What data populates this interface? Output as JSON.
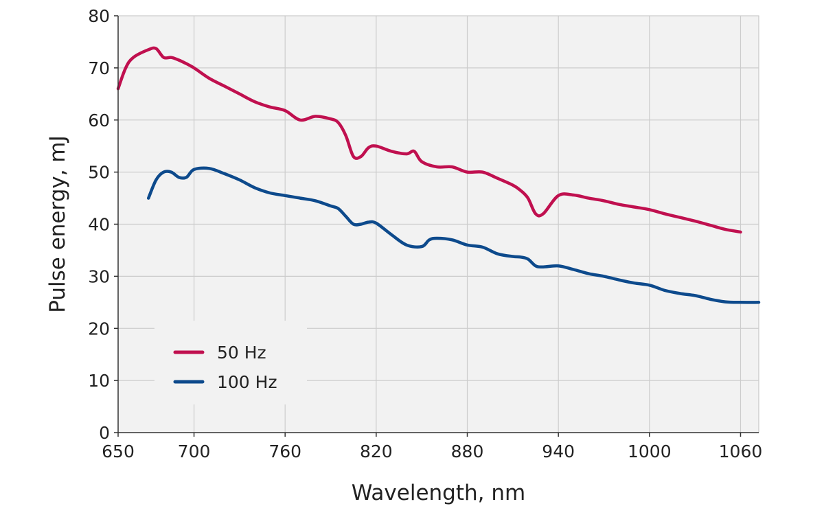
{
  "chart_data": {
    "type": "line",
    "xlabel": "Wavelength, nm",
    "ylabel": "Pulse energy, mJ",
    "xlim": [
      650,
      1072
    ],
    "ylim": [
      0,
      80
    ],
    "x_ticks": [
      650,
      700,
      760,
      820,
      880,
      940,
      1000,
      1060
    ],
    "x_tick_labels": [
      "650",
      "700",
      "760",
      "820",
      "880",
      "940",
      "1000",
      "1060"
    ],
    "y_ticks": [
      0,
      10,
      20,
      30,
      40,
      50,
      60,
      70,
      80
    ],
    "y_tick_labels": [
      "0",
      "10",
      "20",
      "30",
      "40",
      "50",
      "60",
      "70",
      "80"
    ],
    "grid": true,
    "legend_position": "bottom-left",
    "plot_background": "#f2f2f2",
    "grid_color": "#cccccc",
    "series": [
      {
        "name": "50 Hz",
        "color": "#c0104f",
        "x": [
          650,
          655,
          660,
          670,
          675,
          680,
          685,
          690,
          695,
          700,
          710,
          720,
          730,
          740,
          750,
          760,
          770,
          780,
          790,
          795,
          800,
          805,
          810,
          815,
          820,
          830,
          840,
          845,
          850,
          860,
          870,
          880,
          890,
          900,
          910,
          915,
          920,
          925,
          930,
          940,
          950,
          960,
          970,
          980,
          990,
          1000,
          1010,
          1020,
          1030,
          1040,
          1050,
          1060
        ],
        "y": [
          66,
          70,
          72,
          73.5,
          73.7,
          72,
          72,
          71.5,
          70.8,
          70,
          68,
          66.5,
          65,
          63.5,
          62.5,
          61.8,
          60,
          60.7,
          60.2,
          59.5,
          57,
          53,
          53,
          54.7,
          55,
          54,
          53.5,
          54,
          52,
          51,
          51,
          50,
          50,
          48.8,
          47.5,
          46.5,
          45,
          42,
          42,
          45.5,
          45.6,
          45,
          44.5,
          43.8,
          43.3,
          42.8,
          42,
          41.3,
          40.6,
          39.8,
          39,
          38.5
        ]
      },
      {
        "name": "100 Hz",
        "color": "#0d4a8c",
        "x": [
          670,
          675,
          680,
          685,
          690,
          695,
          700,
          710,
          720,
          730,
          740,
          750,
          760,
          770,
          780,
          790,
          795,
          800,
          805,
          810,
          815,
          820,
          830,
          840,
          850,
          855,
          860,
          870,
          880,
          890,
          900,
          910,
          915,
          920,
          925,
          930,
          940,
          950,
          960,
          970,
          980,
          990,
          1000,
          1010,
          1020,
          1030,
          1040,
          1050,
          1060,
          1072
        ],
        "y": [
          45,
          48.5,
          50,
          50,
          49,
          49,
          50.5,
          50.7,
          49.7,
          48.5,
          47,
          46,
          45.5,
          45,
          44.5,
          43.5,
          43,
          41.5,
          40,
          40,
          40.4,
          40.2,
          38,
          36,
          35.7,
          37,
          37.3,
          37,
          36,
          35.6,
          34.3,
          33.8,
          33.7,
          33.3,
          32,
          31.8,
          32,
          31.3,
          30.5,
          30,
          29.3,
          28.7,
          28.3,
          27.3,
          26.7,
          26.3,
          25.6,
          25.1,
          25,
          25
        ]
      }
    ]
  }
}
